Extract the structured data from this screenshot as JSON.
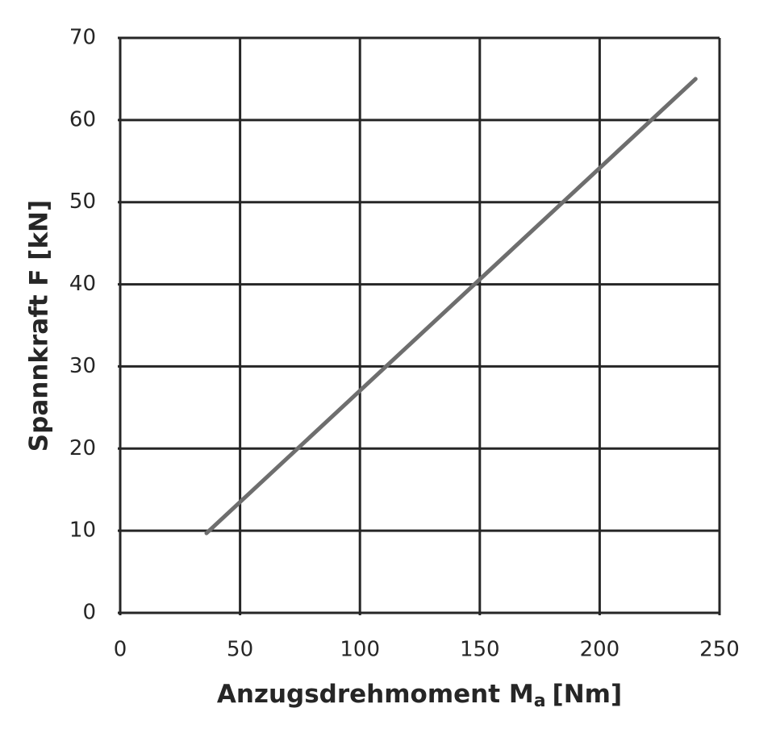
{
  "chart_data": {
    "type": "line",
    "xlabel": {
      "main": "Anzugsdrehmoment M",
      "subscript": "a",
      "unit": "[Nm]"
    },
    "ylabel": "Spannkraft F [kN]",
    "x": [
      36,
      240
    ],
    "values": [
      9.7,
      65
    ],
    "color": "#6e6e6e",
    "xlim": [
      0,
      250
    ],
    "xticks": [
      0,
      50,
      100,
      150,
      200,
      250
    ],
    "ylim": [
      0,
      70
    ],
    "yticks": [
      0,
      10,
      20,
      30,
      40,
      50,
      60,
      70
    ],
    "grid": true
  }
}
